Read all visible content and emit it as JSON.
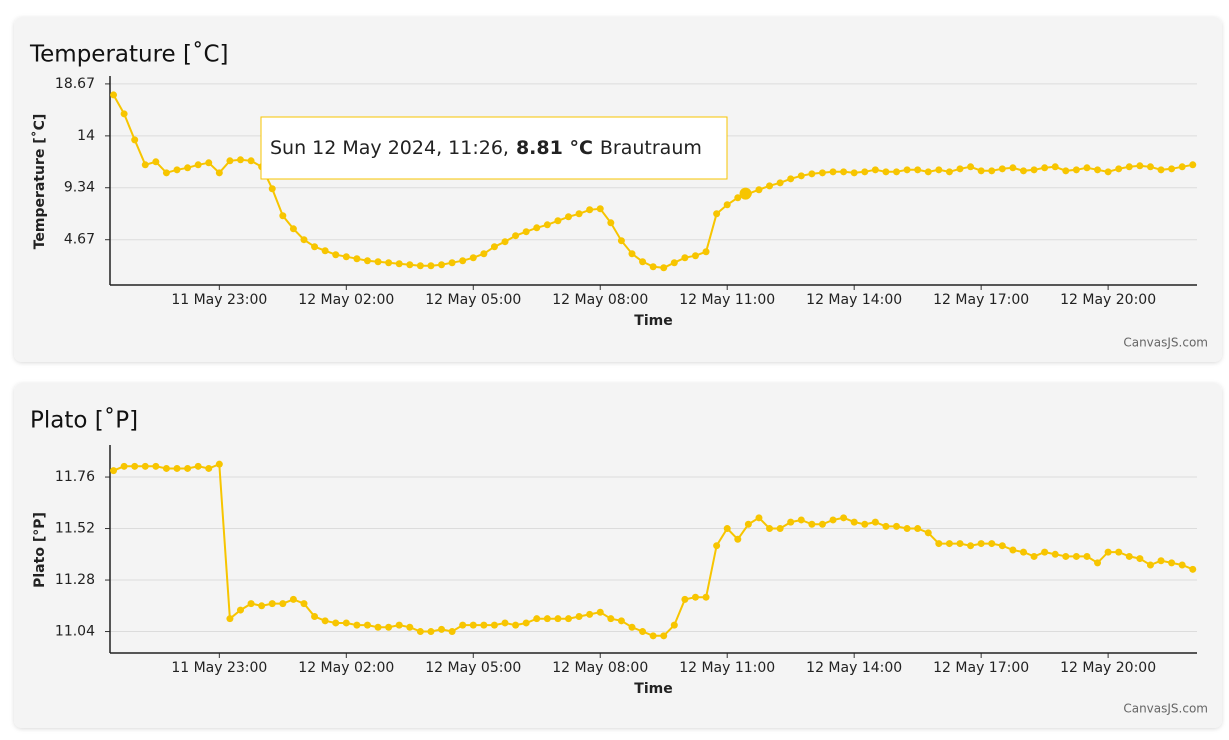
{
  "chart_data": [
    {
      "type": "line",
      "title": "Temperature [˚C]",
      "x_label": "Time",
      "y_label": "Temperature [˚C]",
      "credit": "CanvasJS.com",
      "x": [
        "11 May 20:30",
        "11 May 20:45",
        "11 May 21:00",
        "11 May 21:15",
        "11 May 21:30",
        "11 May 21:45",
        "11 May 22:00",
        "11 May 22:15",
        "11 May 22:30",
        "11 May 22:45",
        "11 May 23:00",
        "11 May 23:15",
        "11 May 23:30",
        "11 May 23:45",
        "12 May 00:00",
        "12 May 00:15",
        "12 May 00:30",
        "12 May 00:45",
        "12 May 01:00",
        "12 May 01:15",
        "12 May 01:30",
        "12 May 01:45",
        "12 May 02:00",
        "12 May 02:15",
        "12 May 02:30",
        "12 May 02:45",
        "12 May 03:00",
        "12 May 03:15",
        "12 May 03:30",
        "12 May 03:45",
        "12 May 04:00",
        "12 May 04:15",
        "12 May 04:30",
        "12 May 04:45",
        "12 May 05:00",
        "12 May 05:15",
        "12 May 05:30",
        "12 May 05:45",
        "12 May 06:00",
        "12 May 06:15",
        "12 May 06:30",
        "12 May 06:45",
        "12 May 07:00",
        "12 May 07:15",
        "12 May 07:30",
        "12 May 07:45",
        "12 May 08:00",
        "12 May 08:15",
        "12 May 08:30",
        "12 May 08:45",
        "12 May 09:00",
        "12 May 09:15",
        "12 May 09:30",
        "12 May 09:45",
        "12 May 10:00",
        "12 May 10:15",
        "12 May 10:30",
        "12 May 10:45",
        "12 May 11:00",
        "12 May 11:15",
        "12 May 11:30",
        "12 May 11:45",
        "12 May 12:00",
        "12 May 12:15",
        "12 May 12:30",
        "12 May 12:45",
        "12 May 13:00",
        "12 May 13:15",
        "12 May 13:30",
        "12 May 13:45",
        "12 May 14:00",
        "12 May 14:15",
        "12 May 14:30",
        "12 May 14:45",
        "12 May 15:00",
        "12 May 15:15",
        "12 May 15:30",
        "12 May 15:45",
        "12 May 16:00",
        "12 May 16:15",
        "12 May 16:30",
        "12 May 16:45",
        "12 May 17:00",
        "12 May 17:15",
        "12 May 17:30",
        "12 May 17:45",
        "12 May 18:00",
        "12 May 18:15",
        "12 May 18:30",
        "12 May 18:45",
        "12 May 19:00",
        "12 May 19:15",
        "12 May 19:30",
        "12 May 19:45",
        "12 May 20:00",
        "12 May 20:15",
        "12 May 20:30",
        "12 May 20:45",
        "12 May 21:00",
        "12 May 21:15",
        "12 May 21:30",
        "12 May 21:45",
        "12 May 22:00"
      ],
      "xlim": [
        "11 May 20:25",
        "12 May 22:06"
      ],
      "xticks": [
        "11 May 23:00",
        "12 May 02:00",
        "12 May 05:00",
        "12 May 08:00",
        "12 May 11:00",
        "12 May 14:00",
        "12 May 17:00",
        "12 May 20:00"
      ],
      "ylim": [
        0.6,
        19.2
      ],
      "yticks": [
        18.67,
        14,
        9.34,
        4.67
      ],
      "grid": true,
      "series": [
        {
          "name": "Brautraum",
          "color": "#f7c500",
          "values": [
            17.68,
            15.98,
            13.64,
            11.4,
            11.67,
            10.68,
            10.95,
            11.13,
            11.4,
            11.58,
            10.68,
            11.76,
            11.85,
            11.76,
            11.22,
            9.25,
            6.82,
            5.65,
            4.67,
            4.04,
            3.68,
            3.32,
            3.14,
            2.96,
            2.78,
            2.69,
            2.6,
            2.51,
            2.42,
            2.33,
            2.33,
            2.42,
            2.6,
            2.78,
            3.05,
            3.41,
            4.04,
            4.49,
            5.03,
            5.39,
            5.74,
            6.01,
            6.37,
            6.73,
            7.0,
            7.36,
            7.45,
            6.19,
            4.58,
            3.41,
            2.69,
            2.24,
            2.15,
            2.6,
            3.05,
            3.23,
            3.59,
            7.0,
            7.81,
            8.44,
            8.8,
            9.16,
            9.51,
            9.78,
            10.14,
            10.41,
            10.59,
            10.68,
            10.77,
            10.77,
            10.68,
            10.77,
            10.95,
            10.77,
            10.77,
            10.95,
            10.95,
            10.77,
            10.95,
            10.77,
            11.04,
            11.22,
            10.86,
            10.86,
            11.04,
            11.13,
            10.86,
            10.95,
            11.13,
            11.22,
            10.86,
            10.95,
            11.13,
            10.95,
            10.77,
            11.04,
            11.22,
            11.31,
            11.22,
            10.95,
            11.04,
            11.22,
            11.4
          ]
        }
      ],
      "tooltip": {
        "label": "Sun 12 May 2024, 11:26,",
        "x": "12 May 11:26",
        "value": 8.81,
        "value_label": "8.81 °C"
      }
    },
    {
      "type": "line",
      "title": "Plato [˚P]",
      "x_label": "Time",
      "y_label": "Plato [°P]",
      "credit": "CanvasJS.com",
      "x": [
        "11 May 20:30",
        "11 May 20:45",
        "11 May 21:00",
        "11 May 21:15",
        "11 May 21:30",
        "11 May 21:45",
        "11 May 22:00",
        "11 May 22:15",
        "11 May 22:30",
        "11 May 22:45",
        "11 May 23:00",
        "11 May 23:15",
        "11 May 23:30",
        "11 May 23:45",
        "12 May 00:00",
        "12 May 00:15",
        "12 May 00:30",
        "12 May 00:45",
        "12 May 01:00",
        "12 May 01:15",
        "12 May 01:30",
        "12 May 01:45",
        "12 May 02:00",
        "12 May 02:15",
        "12 May 02:30",
        "12 May 02:45",
        "12 May 03:00",
        "12 May 03:15",
        "12 May 03:30",
        "12 May 03:45",
        "12 May 04:00",
        "12 May 04:15",
        "12 May 04:30",
        "12 May 04:45",
        "12 May 05:00",
        "12 May 05:15",
        "12 May 05:30",
        "12 May 05:45",
        "12 May 06:00",
        "12 May 06:15",
        "12 May 06:30",
        "12 May 06:45",
        "12 May 07:00",
        "12 May 07:15",
        "12 May 07:30",
        "12 May 07:45",
        "12 May 08:00",
        "12 May 08:15",
        "12 May 08:30",
        "12 May 08:45",
        "12 May 09:00",
        "12 May 09:15",
        "12 May 09:30",
        "12 May 09:45",
        "12 May 10:00",
        "12 May 10:15",
        "12 May 10:30",
        "12 May 10:45",
        "12 May 11:00",
        "12 May 11:15",
        "12 May 11:30",
        "12 May 11:45",
        "12 May 12:00",
        "12 May 12:15",
        "12 May 12:30",
        "12 May 12:45",
        "12 May 13:00",
        "12 May 13:15",
        "12 May 13:30",
        "12 May 13:45",
        "12 May 14:00",
        "12 May 14:15",
        "12 May 14:30",
        "12 May 14:45",
        "12 May 15:00",
        "12 May 15:15",
        "12 May 15:30",
        "12 May 15:45",
        "12 May 16:00",
        "12 May 16:15",
        "12 May 16:30",
        "12 May 16:45",
        "12 May 17:00",
        "12 May 17:15",
        "12 May 17:30",
        "12 May 17:45",
        "12 May 18:00",
        "12 May 18:15",
        "12 May 18:30",
        "12 May 18:45",
        "12 May 19:00",
        "12 May 19:15",
        "12 May 19:30",
        "12 May 19:45",
        "12 May 20:00",
        "12 May 20:15",
        "12 May 20:30",
        "12 May 20:45",
        "12 May 21:00",
        "12 May 21:15",
        "12 May 21:30",
        "12 May 21:45",
        "12 May 22:00"
      ],
      "xlim": [
        "11 May 20:25",
        "12 May 22:06"
      ],
      "xticks": [
        "11 May 23:00",
        "12 May 02:00",
        "12 May 05:00",
        "12 May 08:00",
        "12 May 11:00",
        "12 May 14:00",
        "12 May 17:00",
        "12 May 20:00"
      ],
      "ylim": [
        10.94,
        11.9
      ],
      "yticks": [
        11.76,
        11.52,
        11.28,
        11.04
      ],
      "grid": true,
      "series": [
        {
          "color": "#f7c500",
          "values": [
            11.79,
            11.81,
            11.81,
            11.81,
            11.81,
            11.8,
            11.8,
            11.8,
            11.81,
            11.8,
            11.82,
            11.1,
            11.14,
            11.17,
            11.16,
            11.17,
            11.17,
            11.19,
            11.17,
            11.11,
            11.09,
            11.08,
            11.08,
            11.07,
            11.07,
            11.06,
            11.06,
            11.07,
            11.06,
            11.04,
            11.04,
            11.05,
            11.04,
            11.07,
            11.07,
            11.07,
            11.07,
            11.08,
            11.07,
            11.08,
            11.1,
            11.1,
            11.1,
            11.1,
            11.11,
            11.12,
            11.13,
            11.1,
            11.09,
            11.06,
            11.04,
            11.02,
            11.02,
            11.07,
            11.19,
            11.2,
            11.2,
            11.44,
            11.52,
            11.47,
            11.54,
            11.57,
            11.52,
            11.52,
            11.55,
            11.56,
            11.54,
            11.54,
            11.56,
            11.57,
            11.55,
            11.54,
            11.55,
            11.53,
            11.53,
            11.52,
            11.52,
            11.5,
            11.45,
            11.45,
            11.45,
            11.44,
            11.45,
            11.45,
            11.44,
            11.42,
            11.41,
            11.39,
            11.41,
            11.4,
            11.39,
            11.39,
            11.39,
            11.36,
            11.41,
            11.41,
            11.39,
            11.38,
            11.35,
            11.37,
            11.36,
            11.35,
            11.33
          ]
        }
      ]
    }
  ]
}
